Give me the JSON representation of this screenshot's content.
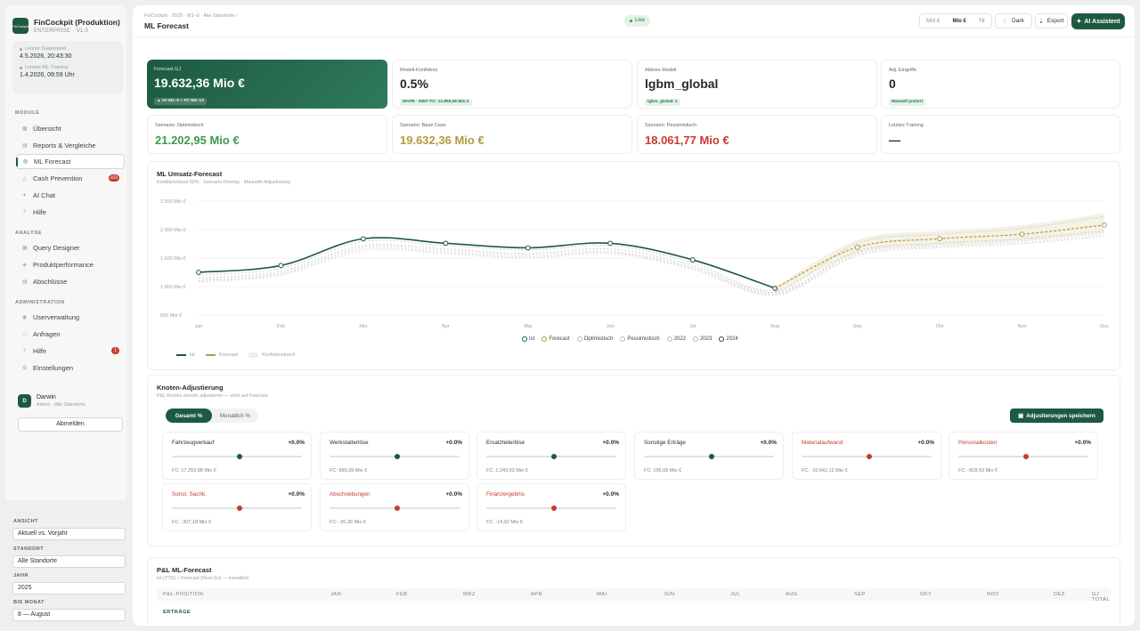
{
  "brand": {
    "name": "FinCockpit (Produktion)",
    "subtitle": "ENTERPRISE · V1.0",
    "logo_text": "FinCockpit"
  },
  "sync": [
    {
      "label": "Letzter Datenstand",
      "value": "4.5.2026, 20:43:30"
    },
    {
      "label": "Letztes ML-Training",
      "value": "1.4.2026, 09:59 Uhr"
    }
  ],
  "nav": {
    "module_title": "MODULE",
    "module_items": [
      {
        "label": "Übersicht",
        "icon": "grid-icon"
      },
      {
        "label": "Reports & Vergleiche",
        "icon": "report-icon"
      },
      {
        "label": "ML Forecast",
        "icon": "forecast-icon",
        "active": true
      },
      {
        "label": "Cash Prevention",
        "icon": "cash-icon",
        "badge": "103"
      },
      {
        "label": "AI Chat",
        "icon": "chat-icon"
      },
      {
        "label": "Hilfe",
        "icon": "help-icon"
      }
    ],
    "analyse_title": "ANALYSE",
    "analyse_items": [
      {
        "label": "Query Designer",
        "icon": "query-icon"
      },
      {
        "label": "Produktperformance",
        "icon": "product-icon"
      },
      {
        "label": "Abschlüsse",
        "icon": "closing-icon"
      }
    ],
    "admin_title": "ADMINISTRATION",
    "admin_items": [
      {
        "label": "Userverwaltung",
        "icon": "users-icon"
      },
      {
        "label": "Anfragen",
        "icon": "inbox-icon"
      },
      {
        "label": "Hilfe",
        "icon": "help-icon",
        "badge": "1"
      },
      {
        "label": "Einstellungen",
        "icon": "gear-icon"
      }
    ]
  },
  "user": {
    "initial": "D",
    "name": "Darwin",
    "role": "Admin · Alle Standorte",
    "logout": "Abmelden"
  },
  "filters": {
    "view_label": "ANSICHT",
    "view_value": "Aktuell vs. Vorjahr",
    "site_label": "STANDORT",
    "site_value": "Alle Standorte",
    "year_label": "JAHR",
    "year_value": "2025",
    "month_label": "BIS MONAT",
    "month_value": "8 — August"
  },
  "topbar": {
    "breadcrumb": "FinCockpit · 2025 · M1–8 · Alle Standorte ›",
    "title": "ML Forecast",
    "live": "Live",
    "units": [
      "Mrd €",
      "Mio €",
      "T€"
    ],
    "active_unit": "Mio €",
    "dark": "Dark",
    "export": "Export",
    "ai": "AI Assistent"
  },
  "kpis": {
    "forecast": {
      "label": "Forecast GJ",
      "value": "19.632,36 Mio €",
      "pill": "▲ Ist M1–8 + FC M9–12"
    },
    "confidence": {
      "label": "Modell-Konfidenz",
      "value": "0.5%",
      "pill": "MAPE · EBIT FC: 12.855,56 Mio €"
    },
    "model": {
      "label": "Aktives Modell",
      "value": "lgbm_global",
      "pill": "lgbm_global: 1"
    },
    "adj": {
      "label": "Adj. Eingriffe",
      "value": "0",
      "pill": "Manuell justiert"
    },
    "opt": {
      "label": "Szenario: Optimistisch",
      "value": "21.202,95 Mio €",
      "color": "#3f9a4f"
    },
    "base": {
      "label": "Szenario: Base Case",
      "value": "19.632,36 Mio €",
      "color": "#b39a3c"
    },
    "pess": {
      "label": "Szenario: Pessimistisch",
      "value": "18.061,77 Mio €",
      "color": "#c9392f"
    },
    "training": {
      "label": "Letztes Training",
      "value": "—"
    }
  },
  "chart_panel": {
    "title": "ML Umsatz-Forecast",
    "subtitle": "Konfidenzband 80% · Szenario-Overlay · Manuelle Adjustierung",
    "legend_top": [
      "Ist",
      "Forecast",
      "Optimistisch",
      "Pessimistisch",
      "2022",
      "2023",
      "2024"
    ],
    "legend_bottom": [
      "Ist",
      "Forecast",
      "Konfidenzband"
    ]
  },
  "chart_data": {
    "type": "line",
    "title": "ML Umsatz-Forecast",
    "x": [
      "Jan",
      "Feb",
      "Mrz",
      "Apr",
      "Mai",
      "Jun",
      "Jul",
      "Aug",
      "Sep",
      "Okt",
      "Nov",
      "Dez"
    ],
    "y_ticks": [
      "2.500 Mio €",
      "2.000 Mio €",
      "1.500 Mio €",
      "1.000 Mio €",
      "500 Mio €"
    ],
    "ylim": [
      500,
      2500
    ],
    "series": [
      {
        "name": "Ist",
        "values": [
          1250,
          1370,
          1840,
          1760,
          1680,
          1760,
          1470,
          970,
          null,
          null,
          null,
          null
        ],
        "color": "#1d5a41"
      },
      {
        "name": "Forecast",
        "values": [
          null,
          null,
          null,
          null,
          null,
          null,
          null,
          970,
          1690,
          1840,
          1920,
          2080
        ],
        "color": "#b39a3c"
      },
      {
        "name": "Optimistisch",
        "values": [
          1200,
          1320,
          1790,
          1720,
          1640,
          1720,
          1420,
          930,
          1760,
          1920,
          2020,
          2230
        ],
        "color": "#c9ccca"
      },
      {
        "name": "Pessimistisch",
        "values": [
          1150,
          1270,
          1720,
          1660,
          1580,
          1660,
          1370,
          900,
          1620,
          1760,
          1840,
          1980
        ],
        "color": "#c9ccca"
      },
      {
        "name": "2022",
        "values": [
          1120,
          1240,
          1690,
          1630,
          1550,
          1620,
          1340,
          880,
          1590,
          1720,
          1800,
          1940
        ],
        "color": "#d8dad9"
      },
      {
        "name": "2023",
        "values": [
          1100,
          1220,
          1660,
          1600,
          1520,
          1600,
          1320,
          860,
          1560,
          1700,
          1770,
          1900
        ],
        "color": "#d8dad9"
      },
      {
        "name": "2024",
        "values": [
          1080,
          1200,
          1630,
          1580,
          1500,
          1580,
          1300,
          850,
          1540,
          1680,
          1750,
          1880
        ],
        "color": "#d8dad9"
      }
    ],
    "grid": true,
    "legend": "bottom"
  },
  "knoten": {
    "title": "Knoten-Adjustierung",
    "subtitle": "P&L-Knoten einzeln adjustieren — wirkt auf Forecast",
    "tabs": [
      "Gesamt %",
      "Monatlich %"
    ],
    "save": "Adjustierungen speichern",
    "nodes": [
      {
        "name": "Fahrzeugverkauf",
        "pct": "+0.0%",
        "fc": "FC: 17.253,98 Mio €",
        "neg": false
      },
      {
        "name": "Werkstatterlöse",
        "pct": "+0.0%",
        "fc": "FC: 960,39 Mio €",
        "neg": false
      },
      {
        "name": "Ersatzteilerlöse",
        "pct": "+0.0%",
        "fc": "FC: 1.243,93 Mio €",
        "neg": false
      },
      {
        "name": "Sonstige Erträge",
        "pct": "+0.0%",
        "fc": "FC: 196,08 Mio €",
        "neg": false
      },
      {
        "name": "Materialaufwand",
        "pct": "+0.0%",
        "fc": "FC: -16.642,12 Mio €",
        "neg": true
      },
      {
        "name": "Personalkosten",
        "pct": "+0.0%",
        "fc": "FC: -818,93 Mio €",
        "neg": true
      },
      {
        "name": "Sonst. Sachk.",
        "pct": "+0.0%",
        "fc": "FC: -307,18 Mio €",
        "neg": true
      },
      {
        "name": "Abschreibungen",
        "pct": "+0.0%",
        "fc": "FC: -36,36 Mio €",
        "neg": true
      },
      {
        "name": "Finanzergebnis",
        "pct": "+0.0%",
        "fc": "FC: -14,92 Mio €",
        "neg": true
      }
    ]
  },
  "pl": {
    "title": "P&L ML-Forecast",
    "subtitle": "Ist (YTD) + Forecast (Rest-GJ) — monatlich",
    "columns": [
      "P&L-POSITION",
      "JAN",
      "FEB",
      "MRZ",
      "APR",
      "MAI",
      "JUN",
      "JUL",
      "AUG",
      "SEP",
      "OKT",
      "NOV",
      "DEZ",
      "GJ TOTAL"
    ],
    "section": "ERTRÄGE"
  }
}
